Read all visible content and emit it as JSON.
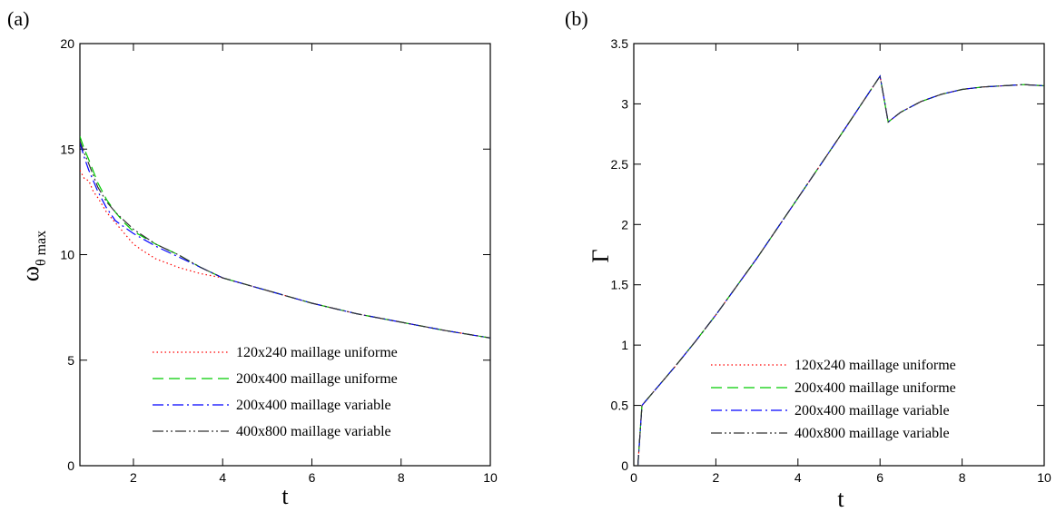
{
  "chart_data": [
    {
      "type": "line",
      "panel_label": "(a)",
      "xlabel": "t",
      "ylabel_main": "ω",
      "ylabel_sub": "θ max",
      "xlim": [
        0.8,
        10
      ],
      "ylim": [
        0,
        20
      ],
      "xticks": [
        2,
        4,
        6,
        8,
        10
      ],
      "yticks": [
        0,
        5,
        10,
        15,
        20
      ],
      "legend_position": "bottom-right",
      "series": [
        {
          "name": "120x240 maillage uniforme",
          "color": "#ff0000",
          "dash": "dotted",
          "x": [
            0.8,
            0.9,
            1.0,
            1.1,
            1.2,
            1.4,
            1.6,
            1.8,
            2.0,
            2.2,
            2.5,
            3.0,
            3.5,
            4.0,
            4.5,
            5.0,
            6.0,
            7.0,
            8.0,
            9.0,
            10.0
          ],
          "y": [
            14.0,
            13.6,
            13.5,
            13.0,
            12.7,
            12.0,
            11.5,
            11.0,
            10.5,
            10.2,
            9.8,
            9.4,
            9.1,
            8.9,
            8.6,
            8.3,
            7.7,
            7.2,
            6.8,
            6.4,
            6.05
          ]
        },
        {
          "name": "200x400 maillage uniforme",
          "color": "#00cc00",
          "dash": "dashed",
          "x": [
            0.8,
            0.9,
            1.0,
            1.2,
            1.4,
            1.6,
            1.8,
            2.0,
            2.5,
            3.0,
            3.5,
            4.0,
            4.5,
            5.0,
            6.0,
            7.0,
            8.0,
            9.0,
            10.0
          ],
          "y": [
            15.6,
            15.0,
            14.5,
            13.4,
            12.6,
            12.0,
            11.5,
            11.1,
            10.5,
            10.0,
            9.4,
            8.9,
            8.6,
            8.3,
            7.7,
            7.2,
            6.8,
            6.4,
            6.05
          ]
        },
        {
          "name": "200x400 maillage variable",
          "color": "#0000ff",
          "dash": "dashdot",
          "x": [
            0.8,
            0.9,
            1.0,
            1.2,
            1.4,
            1.6,
            1.8,
            2.0,
            2.5,
            3.0,
            3.5,
            4.0,
            4.5,
            5.0,
            6.0,
            7.0,
            8.0,
            9.0,
            10.0
          ],
          "y": [
            15.3,
            14.6,
            14.0,
            13.0,
            12.2,
            11.6,
            11.3,
            11.0,
            10.4,
            9.9,
            9.4,
            8.9,
            8.6,
            8.3,
            7.7,
            7.2,
            6.8,
            6.4,
            6.05
          ]
        },
        {
          "name": "400x800 maillage variable",
          "color": "#333333",
          "dash": "dashdotdot",
          "x": [
            0.8,
            0.9,
            1.0,
            1.2,
            1.4,
            1.6,
            1.8,
            2.0,
            2.5,
            3.0,
            3.5,
            4.0,
            4.5,
            5.0,
            6.0,
            7.0,
            8.0,
            9.0,
            10.0
          ],
          "y": [
            15.4,
            14.8,
            14.3,
            13.2,
            12.5,
            12.0,
            11.6,
            11.2,
            10.5,
            10.0,
            9.4,
            8.9,
            8.6,
            8.3,
            7.7,
            7.2,
            6.8,
            6.4,
            6.05
          ]
        }
      ]
    },
    {
      "type": "line",
      "panel_label": "(b)",
      "xlabel": "t",
      "ylabel_main": "Γ",
      "ylabel_sub": "",
      "xlim": [
        0,
        10
      ],
      "ylim": [
        0,
        3.5
      ],
      "xticks": [
        0,
        2,
        4,
        6,
        8,
        10
      ],
      "yticks": [
        0,
        0.5,
        1,
        1.5,
        2,
        2.5,
        3,
        3.5
      ],
      "legend_position": "bottom-right",
      "series": [
        {
          "name": "120x240 maillage uniforme",
          "color": "#ff0000",
          "dash": "dotted",
          "x": [
            0.1,
            0.2,
            0.5,
            1.0,
            1.5,
            2.0,
            3.0,
            4.0,
            5.0,
            6.0,
            6.2,
            6.5,
            7.0,
            7.5,
            8.0,
            8.5,
            9.0,
            9.5,
            10.0
          ],
          "y": [
            0.0,
            0.5,
            0.62,
            0.82,
            1.03,
            1.25,
            1.72,
            2.22,
            2.72,
            3.23,
            2.85,
            2.93,
            3.02,
            3.08,
            3.12,
            3.14,
            3.15,
            3.16,
            3.15
          ]
        },
        {
          "name": "200x400 maillage uniforme",
          "color": "#00cc00",
          "dash": "dashed",
          "x": [
            0.1,
            0.2,
            0.5,
            1.0,
            1.5,
            2.0,
            3.0,
            4.0,
            5.0,
            6.0,
            6.2,
            6.5,
            7.0,
            7.5,
            8.0,
            8.5,
            9.0,
            9.5,
            10.0
          ],
          "y": [
            0.0,
            0.5,
            0.62,
            0.82,
            1.03,
            1.25,
            1.72,
            2.22,
            2.72,
            3.23,
            2.85,
            2.93,
            3.02,
            3.08,
            3.12,
            3.14,
            3.15,
            3.16,
            3.15
          ]
        },
        {
          "name": "200x400 maillage variable",
          "color": "#0000ff",
          "dash": "dashdot",
          "x": [
            0.1,
            0.2,
            0.5,
            1.0,
            1.5,
            2.0,
            3.0,
            4.0,
            5.0,
            6.0,
            6.2,
            6.5,
            7.0,
            7.5,
            8.0,
            8.5,
            9.0,
            9.5,
            10.0
          ],
          "y": [
            0.0,
            0.5,
            0.62,
            0.82,
            1.03,
            1.25,
            1.72,
            2.22,
            2.72,
            3.23,
            2.85,
            2.93,
            3.02,
            3.08,
            3.12,
            3.14,
            3.15,
            3.16,
            3.15
          ]
        },
        {
          "name": "400x800 maillage variable",
          "color": "#333333",
          "dash": "dashdotdot",
          "x": [
            0.1,
            0.2,
            0.5,
            1.0,
            1.5,
            2.0,
            3.0,
            4.0,
            5.0,
            6.0,
            6.2,
            6.5,
            7.0,
            7.5,
            8.0,
            8.5,
            9.0,
            9.5,
            10.0
          ],
          "y": [
            0.0,
            0.5,
            0.62,
            0.82,
            1.03,
            1.25,
            1.72,
            2.22,
            2.72,
            3.23,
            2.85,
            2.93,
            3.02,
            3.08,
            3.12,
            3.14,
            3.15,
            3.16,
            3.15
          ]
        }
      ]
    }
  ]
}
